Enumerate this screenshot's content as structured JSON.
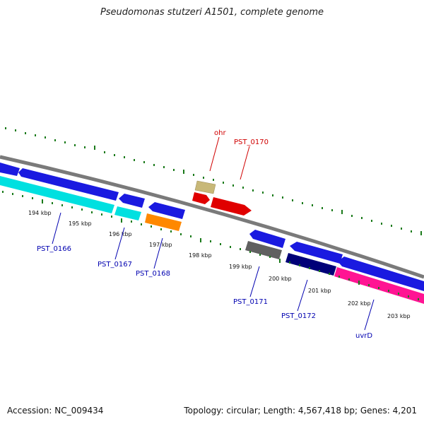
{
  "header": {
    "title": "Pseudomonas stutzeri A1501, complete genome"
  },
  "footer": {
    "accession": "Accession: NC_009434",
    "summary": "Topology: circular; Length: 4,567,418 bp; Genes: 4,201"
  },
  "colors": {
    "backbone": "#8a8a8a",
    "ticks": "#1a7a1a",
    "gene_label_forward": "#d00000",
    "gene_label_reverse": "#0000b0"
  },
  "kbp_labels": [
    "194 kbp",
    "195 kbp",
    "196 kbp",
    "197 kbp",
    "198 kbp",
    "199 kbp",
    "200 kbp",
    "201 kbp",
    "202 kbp",
    "203 kbp"
  ],
  "gene_labels": {
    "ohr": "ohr",
    "pst_0170": "PST_0170",
    "pst_0166": "PST_0166",
    "pst_0167": "PST_0167",
    "pst_0168": "PST_0168",
    "pst_0171": "PST_0171",
    "pst_0172": "PST_0172",
    "uvrd": "uvrD"
  }
}
